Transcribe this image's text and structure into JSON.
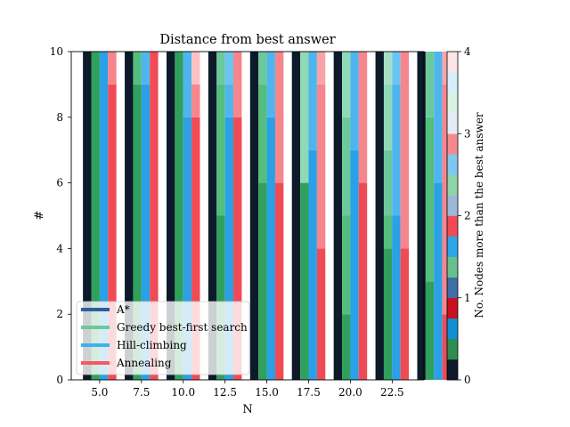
{
  "chart_data": {
    "type": "bar",
    "title": "Distance from best answer",
    "xlabel": "N",
    "ylabel": "#",
    "ylim": [
      0,
      10
    ],
    "xlim": [
      3.3,
      24.4
    ],
    "x_ticks": [
      "5.0",
      "7.5",
      "10.0",
      "12.5",
      "15.0",
      "17.5",
      "20.0",
      "22.5"
    ],
    "y_ticks": [
      "0",
      "2",
      "4",
      "6",
      "8",
      "10"
    ],
    "x": [
      4,
      6.5,
      9,
      11.5,
      14,
      16.5,
      19,
      21.5,
      24
    ],
    "series_width": 0.5,
    "series": [
      {
        "name": "A*",
        "values": [
          [
            10,
            0,
            0,
            0,
            0,
            0,
            0,
            0,
            0
          ],
          [
            10,
            0,
            0,
            0,
            0,
            0,
            0,
            0,
            0
          ],
          [
            10,
            0,
            0,
            0,
            0,
            0,
            0,
            0,
            0
          ],
          [
            10,
            0,
            0,
            0,
            0,
            0,
            0,
            0,
            0
          ],
          [
            10,
            0,
            0,
            0,
            0,
            0,
            0,
            0,
            0
          ],
          [
            10,
            0,
            0,
            0,
            0,
            0,
            0,
            0,
            0
          ],
          [
            10,
            0,
            0,
            0,
            0,
            0,
            0,
            0,
            0
          ],
          [
            10,
            0,
            0,
            0,
            0,
            0,
            0,
            0,
            0
          ],
          [
            10,
            0,
            0,
            0,
            0,
            0,
            0,
            0,
            0
          ]
        ]
      },
      {
        "name": "Greedy best-first search",
        "values": [
          [
            10,
            0,
            0,
            0,
            0,
            0,
            0,
            0,
            0
          ],
          [
            9,
            1,
            0,
            0,
            0,
            0,
            0,
            0,
            0
          ],
          [
            10,
            0,
            0,
            0,
            0,
            0,
            0,
            0,
            0
          ],
          [
            5,
            4,
            1,
            0,
            0,
            0,
            0,
            0,
            0
          ],
          [
            6,
            3,
            1,
            0,
            0,
            0,
            0,
            0,
            0
          ],
          [
            6,
            0,
            0,
            4,
            0,
            0,
            0,
            0,
            0
          ],
          [
            2,
            3,
            3,
            2,
            0,
            0,
            0,
            0,
            0
          ],
          [
            4,
            1,
            2,
            2,
            1,
            0,
            0,
            0,
            0
          ],
          [
            3,
            5,
            2,
            0,
            0,
            0,
            0,
            0,
            0
          ]
        ]
      },
      {
        "name": "Hill-climbing",
        "values": [
          [
            0,
            10,
            0,
            0,
            0,
            0,
            0,
            0,
            0
          ],
          [
            0,
            9,
            1,
            0,
            0,
            0,
            0,
            0,
            0
          ],
          [
            0,
            8,
            2,
            0,
            0,
            0,
            0,
            0,
            0
          ],
          [
            0,
            8,
            1,
            1,
            0,
            0,
            0,
            0,
            0
          ],
          [
            0,
            8,
            2,
            0,
            0,
            0,
            0,
            0,
            0
          ],
          [
            0,
            7,
            3,
            0,
            0,
            0,
            0,
            0,
            0
          ],
          [
            0,
            7,
            3,
            0,
            0,
            0,
            0,
            0,
            0
          ],
          [
            0,
            5,
            4,
            1,
            0,
            0,
            0,
            0,
            0
          ],
          [
            0,
            6,
            4,
            0,
            0,
            0,
            0,
            0,
            0
          ]
        ]
      },
      {
        "name": "Annealing",
        "values": [
          [
            0,
            9,
            1,
            0,
            0,
            0,
            0,
            0,
            0
          ],
          [
            0,
            10,
            0,
            0,
            0,
            0,
            0,
            0,
            0
          ],
          [
            0,
            8,
            1,
            0,
            1,
            0,
            0,
            0,
            0
          ],
          [
            0,
            8,
            2,
            0,
            0,
            0,
            0,
            0,
            0
          ],
          [
            0,
            6,
            4,
            0,
            0,
            0,
            0,
            0,
            0
          ],
          [
            0,
            4,
            5,
            1,
            0,
            0,
            0,
            0,
            0
          ],
          [
            0,
            6,
            4,
            0,
            0,
            0,
            0,
            0,
            0
          ],
          [
            0,
            4,
            6,
            0,
            0,
            0,
            0,
            0,
            0
          ],
          [
            0,
            2,
            7,
            1,
            0,
            0,
            0,
            0,
            0
          ]
        ]
      }
    ],
    "level_colors": [
      [
        "#0c1a29",
        "#1f4c5e",
        "#2e7a8c",
        "#155c9b",
        "#2b5d99",
        "#3d70b0",
        "#5a90c8",
        "#7aa6d6",
        "#96bce0"
      ],
      [
        "#2fa05d",
        "#54be7e",
        "#6cc99b",
        "#8fd9b6",
        "#a7e0c6",
        "#b3ddd0",
        "#c6ecdc",
        "#d8f2e7",
        "#eaf8f2"
      ],
      [
        "#0f8fd4",
        "#2aa0e6",
        "#4fb5ee",
        "#6ac4f2",
        "#8fd3f6",
        "#a9ddf8",
        "#c0e7fa",
        "#d6effc",
        "#eef8fe"
      ],
      [
        "#c90f1e",
        "#f04b55",
        "#f7858c",
        "#f9a3a9",
        "#fcc1c5",
        "#fbcfd2",
        "#fcdcdf",
        "#fdeaec",
        "#fff6f7"
      ]
    ],
    "legend": {
      "position": "lower-left",
      "labels": [
        "A*",
        "Greedy best-first search",
        "Hill-climbing",
        "Annealing"
      ]
    },
    "legend_colors": [
      "#2f5f9a",
      "#6cc99b",
      "#3fb0ec",
      "#f25a64"
    ],
    "colorbar": {
      "label": "No. Nodes more than the best answer",
      "range": [
        0,
        4
      ],
      "ticks": [
        "0",
        "1",
        "2",
        "3",
        "4"
      ],
      "colors": [
        "#0c1a29",
        "#2e8c4e",
        "#0f8fd4",
        "#c90f1e",
        "#3d6ea8",
        "#66bf8c",
        "#2aa6e8",
        "#f04b55",
        "#9db7d8",
        "#8fd3a8",
        "#7ec8f0",
        "#f48a90",
        "#e3ecf6",
        "#d9f2e3",
        "#d7eefb",
        "#fde4e6"
      ]
    },
    "grid": false
  }
}
